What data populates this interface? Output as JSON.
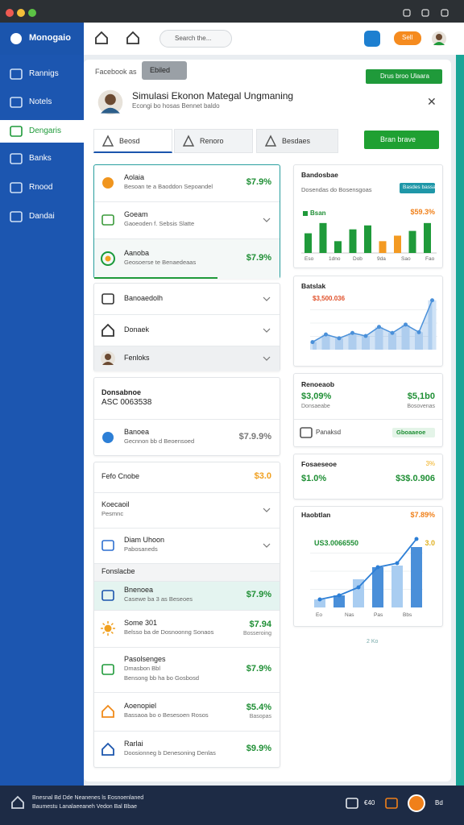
{
  "header": {
    "app_name": "Monogaio",
    "search_placeholder": "Search the...",
    "sell_button": "Sell"
  },
  "sidebar": {
    "items": [
      "Rannigs",
      "Notels",
      "Dengaris",
      "Banks",
      "Rnood",
      "Dandai"
    ]
  },
  "panel": {
    "breadcrumb": "Facebook as",
    "tooltip": "Ebiled",
    "action_button": "Drus broo Ulaara",
    "title": "Simulasi Ekonon Mategal Ungmaning",
    "subtitle": "Econgi bo hosas Bennet baldo",
    "tabs": [
      "Beosd",
      "Renoro",
      "Besdaes"
    ],
    "primary_button": "Bran brave"
  },
  "list_groups": [
    {
      "items": [
        {
          "title": "Aolaia",
          "subtitle": "Besoan te a Baoddon Sepoandel",
          "value": "$7.9%"
        },
        {
          "title": "Goeam",
          "subtitle": "Gaoeoden f. Sebsis Slatte"
        },
        {
          "title": "Aanoba",
          "subtitle": "Geosoerse te Benaedeaas",
          "value": "$7.9%"
        }
      ]
    },
    {
      "items": [
        {
          "title": "Banoaedolh"
        },
        {
          "title": "Donaek"
        },
        {
          "title": "Fenloks"
        }
      ]
    },
    {
      "items": [
        {
          "title": "Donsabnoe",
          "subtitle": "ASC 0063538"
        },
        {
          "title": "Banoea",
          "subtitle": "Gecnnon bb d Beoensoed",
          "value": "$7.9.9%"
        }
      ]
    },
    {
      "items": [
        {
          "title": "Fefo Cnobe",
          "value": "$3.0"
        },
        {
          "title": "Koecaoil",
          "subtitle": "Pesmnc"
        },
        {
          "title": "Diam Uhoon",
          "subtitle": "Pabosaneds"
        },
        {
          "title": "Fonslacbe"
        },
        {
          "title": "Bnenoea",
          "subtitle": "Casewe ba 3 as Beseoes",
          "value": "$7.9%"
        },
        {
          "title": "Some 301",
          "subtitle": "Belsso ba de Dosnoonng Sonaos",
          "value": "$7.94",
          "value_sub": "Bosseroing"
        },
        {
          "title": "Pasolsenges",
          "subtitle": "Dmasbon Bbl",
          "note": "Bensong bb ha bo Gosbosd",
          "value": "$7.9%"
        },
        {
          "title": "Aoenopiel",
          "subtitle": "Bassaoa bo o Besesoen Rosos",
          "value": "$5.4%",
          "value_sub": "Basopas"
        },
        {
          "title": "Rarlai",
          "subtitle": "Doosionneg b Denesoning Denlas",
          "value": "$9.9%"
        }
      ]
    }
  ],
  "widgets": [
    {
      "title": "Bandosbae",
      "subtitle": "Dosendas do Bosensgoas",
      "badge": "Basdes bassa",
      "legend": "Bsan",
      "value": "$59.3%",
      "type": "bar",
      "values": [
        2.5,
        3.8,
        1.5,
        3.0,
        3.5,
        1.5,
        2.2,
        2.8,
        3.8
      ],
      "colors": [
        "#1f9a3a",
        "#1f9a3a",
        "#1f9a3a",
        "#1f9a3a",
        "#1f9a3a",
        "#f39a22",
        "#f39a22",
        "#1f9a3a",
        "#1f9a3a"
      ],
      "ylim": [
        0,
        4.5
      ],
      "x_labels": [
        "Eso",
        "1dno",
        "Dob",
        "9da",
        "Sao",
        "Fao"
      ]
    },
    {
      "title": "Batslak",
      "value": "$3,500.036",
      "type": "area",
      "values": [
        1,
        2,
        1.5,
        2.2,
        1.8,
        3,
        2.2,
        3.3,
        2.3,
        6.5
      ],
      "color": "#4a90d9",
      "ylim": [
        0,
        7
      ]
    },
    {
      "title": "Renoeaob",
      "value": "$3,09%",
      "value_sub": "Donsaeabe",
      "value_2": "$5,1b0",
      "value_2_sub": "Bosovenas",
      "footer": "Panaksd",
      "badge": "Gboaaeoe"
    },
    {
      "title": "Fosaeseoe",
      "badge": "3%",
      "value": "$1.0%",
      "value_2": "$3$.0.906"
    },
    {
      "title": "Haobtlan",
      "value": "$7.89%",
      "legend": "US3.0066550",
      "value_2": "3.0",
      "type": "combo",
      "bars": [
        1,
        1.5,
        3.5,
        5,
        5.2,
        7.5
      ],
      "line": [
        1,
        1.5,
        2.5,
        5,
        5.5,
        8.5
      ],
      "ylim": [
        0,
        9
      ],
      "x_labels": [
        "Eo",
        "Nas",
        "Pas",
        "Bbs"
      ]
    }
  ],
  "pager": "2 Ko",
  "footer": {
    "line_1": "Bnesnal Bd Dde Neanenes ls Eosnoenlaned",
    "line_2": "Baumestu Lanalaeeaneh Vedon Bal Bbae",
    "count": "€40",
    "label": "Bd"
  }
}
